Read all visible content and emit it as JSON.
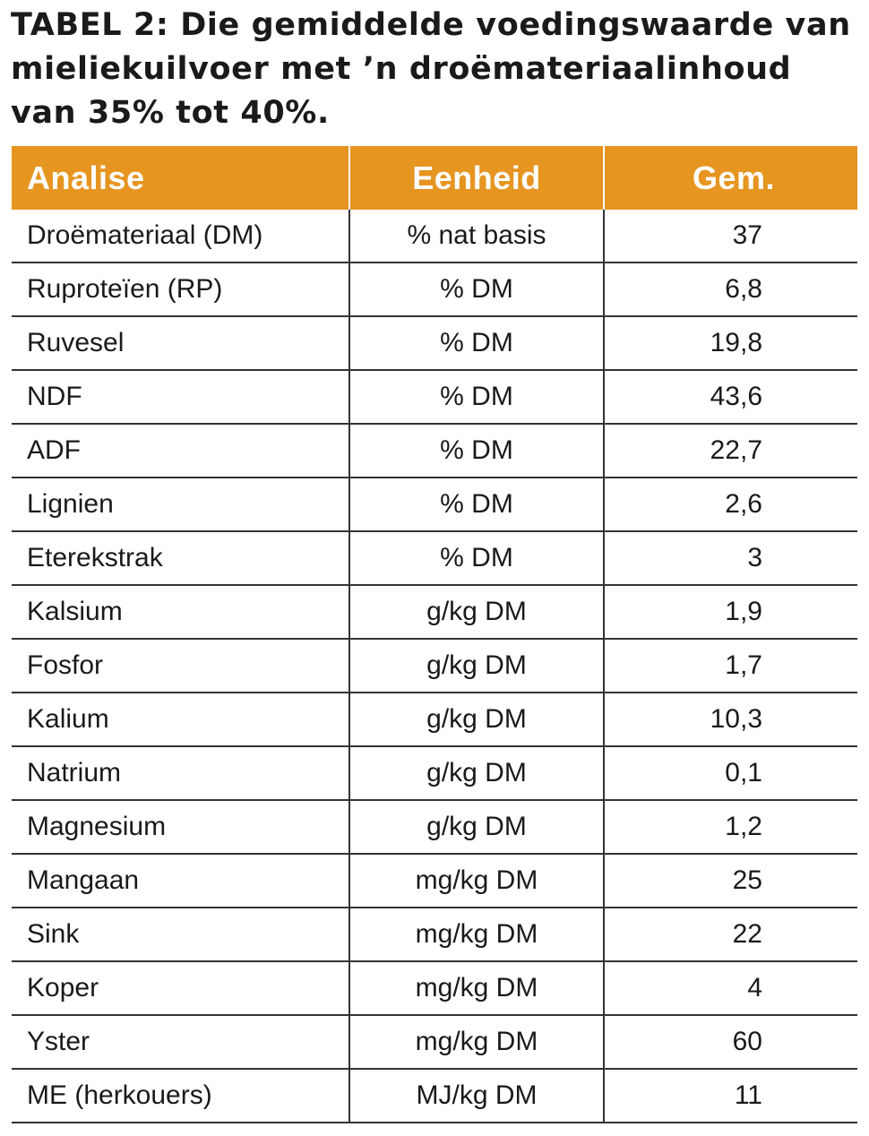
{
  "title_lines": [
    "TABEL 2: Die gemiddelde voedingswaarde van",
    "mieliekuilvoer met ’n droëmateriaalinhoud",
    "van 35% tot 40%."
  ],
  "header": {
    "col1": "Analise",
    "col2": "Eenheid",
    "col3": "Gem."
  },
  "colors": {
    "header_bg": "#E69520",
    "header_text": "#FFFFFF",
    "rule": "#333333"
  },
  "rows": [
    {
      "analysis": "Droëmateriaal (DM)",
      "unit": "% nat basis",
      "value": "37"
    },
    {
      "analysis": "Ruproteïen (RP)",
      "unit": "% DM",
      "value": "6,8"
    },
    {
      "analysis": "Ruvesel",
      "unit": "% DM",
      "value": "19,8"
    },
    {
      "analysis": "NDF",
      "unit": "% DM",
      "value": "43,6"
    },
    {
      "analysis": "ADF",
      "unit": "% DM",
      "value": "22,7"
    },
    {
      "analysis": "Lignien",
      "unit": "% DM",
      "value": "2,6"
    },
    {
      "analysis": "Eterekstrak",
      "unit": "% DM",
      "value": "3"
    },
    {
      "analysis": "Kalsium",
      "unit": "g/kg DM",
      "value": "1,9"
    },
    {
      "analysis": "Fosfor",
      "unit": "g/kg DM",
      "value": "1,7"
    },
    {
      "analysis": "Kalium",
      "unit": "g/kg DM",
      "value": "10,3"
    },
    {
      "analysis": "Natrium",
      "unit": "g/kg DM",
      "value": "0,1"
    },
    {
      "analysis": "Magnesium",
      "unit": "g/kg DM",
      "value": "1,2"
    },
    {
      "analysis": "Mangaan",
      "unit": "mg/kg DM",
      "value": "25"
    },
    {
      "analysis": "Sink",
      "unit": "mg/kg DM",
      "value": "22"
    },
    {
      "analysis": "Koper",
      "unit": "mg/kg DM",
      "value": "4"
    },
    {
      "analysis": "Yster",
      "unit": "mg/kg DM",
      "value": "60"
    },
    {
      "analysis": "ME (herkouers)",
      "unit": "MJ/kg DM",
      "value": "11"
    }
  ]
}
